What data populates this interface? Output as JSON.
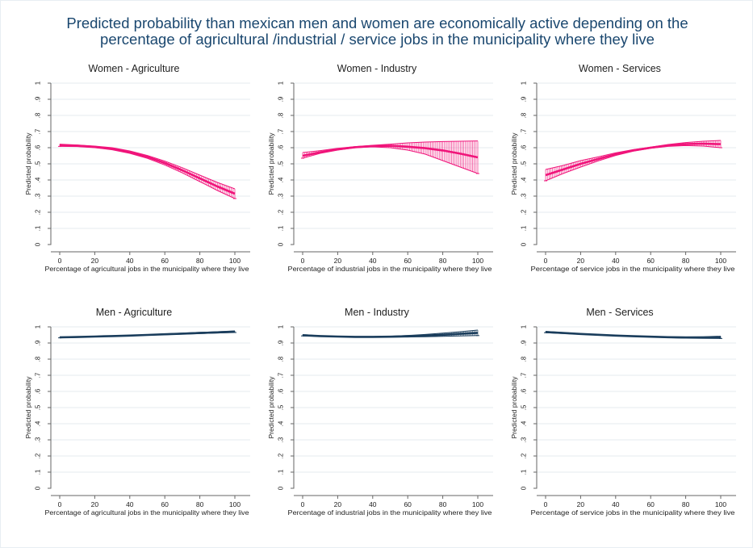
{
  "figure": {
    "title_line1": "Predicted probability than mexican men and women are economically active depending on the",
    "title_line2": "percentage of agricultural /industrial / service jobs in the municipality where they live"
  },
  "colors": {
    "women": "#f0147a",
    "men": "#1a3d5c",
    "title": "#1a476f",
    "text": "#222222",
    "grid": "#e6ebef",
    "axis": "#666666"
  },
  "chart_data": [
    {
      "type": "line",
      "title": "Women - Agriculture",
      "xlabel": "Percentage of agricultural jobs in the municipality where they live",
      "ylabel": "Predicted probability",
      "xlim": [
        0,
        100
      ],
      "ylim": [
        0,
        1
      ],
      "xticks": [
        "0",
        "20",
        "40",
        "60",
        "80",
        "100"
      ],
      "yticks": [
        "0",
        ".1",
        ".2",
        ".3",
        ".4",
        ".5",
        ".6",
        ".7",
        ".8",
        ".9",
        "1"
      ],
      "grid": true,
      "series": [
        {
          "group": "women",
          "x": [
            0,
            10,
            20,
            30,
            40,
            50,
            60,
            70,
            80,
            90,
            100
          ],
          "y": [
            0.615,
            0.612,
            0.605,
            0.593,
            0.572,
            0.543,
            0.505,
            0.46,
            0.41,
            0.36,
            0.315
          ],
          "lower": [
            0.608,
            0.607,
            0.6,
            0.587,
            0.565,
            0.534,
            0.493,
            0.444,
            0.39,
            0.335,
            0.285
          ],
          "upper": [
            0.622,
            0.617,
            0.61,
            0.6,
            0.58,
            0.552,
            0.517,
            0.476,
            0.43,
            0.385,
            0.345
          ]
        }
      ]
    },
    {
      "type": "line",
      "title": "Women - Industry",
      "xlabel": "Percentage of industrial jobs in the municipality where they live",
      "ylabel": "Predicted probability",
      "xlim": [
        0,
        100
      ],
      "ylim": [
        0,
        1
      ],
      "xticks": [
        "0",
        "20",
        "40",
        "60",
        "80",
        "100"
      ],
      "yticks": [
        "0",
        ".1",
        ".2",
        ".3",
        ".4",
        ".5",
        ".6",
        ".7",
        ".8",
        ".9",
        "1"
      ],
      "grid": true,
      "series": [
        {
          "group": "women",
          "x": [
            0,
            10,
            20,
            30,
            40,
            50,
            60,
            70,
            80,
            90,
            100
          ],
          "y": [
            0.55,
            0.572,
            0.59,
            0.603,
            0.61,
            0.612,
            0.606,
            0.597,
            0.583,
            0.563,
            0.54
          ],
          "lower": [
            0.535,
            0.565,
            0.585,
            0.6,
            0.605,
            0.6,
            0.585,
            0.56,
            0.52,
            0.48,
            0.44
          ],
          "upper": [
            0.57,
            0.582,
            0.596,
            0.607,
            0.615,
            0.622,
            0.63,
            0.635,
            0.638,
            0.64,
            0.642
          ]
        }
      ]
    },
    {
      "type": "line",
      "title": "Women - Services",
      "xlabel": "Percentage of service jobs in the municipality where they live",
      "ylabel": "Predicted probability",
      "xlim": [
        0,
        100
      ],
      "ylim": [
        0,
        1
      ],
      "xticks": [
        "0",
        "20",
        "40",
        "60",
        "80",
        "100"
      ],
      "yticks": [
        "0",
        ".1",
        ".2",
        ".3",
        ".4",
        ".5",
        ".6",
        ".7",
        ".8",
        ".9",
        "1"
      ],
      "grid": true,
      "series": [
        {
          "group": "women",
          "x": [
            0,
            10,
            20,
            30,
            40,
            50,
            60,
            70,
            80,
            90,
            100
          ],
          "y": [
            0.43,
            0.465,
            0.5,
            0.53,
            0.56,
            0.583,
            0.6,
            0.614,
            0.622,
            0.625,
            0.622
          ],
          "lower": [
            0.395,
            0.44,
            0.48,
            0.518,
            0.552,
            0.578,
            0.596,
            0.608,
            0.613,
            0.61,
            0.6
          ],
          "upper": [
            0.465,
            0.49,
            0.52,
            0.543,
            0.568,
            0.588,
            0.604,
            0.62,
            0.632,
            0.64,
            0.645
          ]
        }
      ]
    },
    {
      "type": "line",
      "title": "Men - Agriculture",
      "xlabel": "Percentage of agricultural jobs in the municipality where they live",
      "ylabel": "Predicted probability",
      "xlim": [
        0,
        100
      ],
      "ylim": [
        0,
        1
      ],
      "xticks": [
        "0",
        "20",
        "40",
        "60",
        "80",
        "100"
      ],
      "yticks": [
        "0",
        ".1",
        ".2",
        ".3",
        ".4",
        ".5",
        ".6",
        ".7",
        ".8",
        ".9",
        "1"
      ],
      "grid": true,
      "series": [
        {
          "group": "men",
          "x": [
            0,
            10,
            20,
            30,
            40,
            50,
            60,
            70,
            80,
            90,
            100
          ],
          "y": [
            0.935,
            0.937,
            0.94,
            0.943,
            0.946,
            0.95,
            0.954,
            0.958,
            0.962,
            0.966,
            0.97
          ],
          "lower": [
            0.932,
            0.935,
            0.938,
            0.941,
            0.944,
            0.948,
            0.951,
            0.955,
            0.958,
            0.962,
            0.965
          ],
          "upper": [
            0.938,
            0.939,
            0.942,
            0.945,
            0.948,
            0.952,
            0.957,
            0.961,
            0.966,
            0.97,
            0.975
          ]
        }
      ]
    },
    {
      "type": "line",
      "title": "Men - Industry",
      "xlabel": "Percentage of industrial jobs in the municipality where they live",
      "ylabel": "Predicted probability",
      "xlim": [
        0,
        100
      ],
      "ylim": [
        0,
        1
      ],
      "xticks": [
        "0",
        "20",
        "40",
        "60",
        "80",
        "100"
      ],
      "yticks": [
        "0",
        ".1",
        ".2",
        ".3",
        ".4",
        ".5",
        ".6",
        ".7",
        ".8",
        ".9",
        "1"
      ],
      "grid": true,
      "series": [
        {
          "group": "men",
          "x": [
            0,
            10,
            20,
            30,
            40,
            50,
            60,
            70,
            80,
            90,
            100
          ],
          "y": [
            0.948,
            0.943,
            0.94,
            0.938,
            0.938,
            0.939,
            0.942,
            0.946,
            0.951,
            0.957,
            0.963
          ],
          "lower": [
            0.944,
            0.941,
            0.938,
            0.936,
            0.936,
            0.936,
            0.937,
            0.939,
            0.941,
            0.944,
            0.946
          ],
          "upper": [
            0.952,
            0.945,
            0.942,
            0.94,
            0.94,
            0.942,
            0.947,
            0.953,
            0.961,
            0.97,
            0.98
          ]
        }
      ]
    },
    {
      "type": "line",
      "title": "Men - Services",
      "xlabel": "Percentage of service jobs in the municipality where they live",
      "ylabel": "Predicted probability",
      "xlim": [
        0,
        100
      ],
      "ylim": [
        0,
        1
      ],
      "xticks": [
        "0",
        "20",
        "40",
        "60",
        "80",
        "100"
      ],
      "yticks": [
        "0",
        ".1",
        ".2",
        ".3",
        ".4",
        ".5",
        ".6",
        ".7",
        ".8",
        ".9",
        "1"
      ],
      "grid": true,
      "series": [
        {
          "group": "men",
          "x": [
            0,
            10,
            20,
            30,
            40,
            50,
            60,
            70,
            80,
            90,
            100
          ],
          "y": [
            0.968,
            0.962,
            0.956,
            0.951,
            0.946,
            0.942,
            0.939,
            0.936,
            0.934,
            0.934,
            0.935
          ],
          "lower": [
            0.964,
            0.959,
            0.954,
            0.949,
            0.944,
            0.94,
            0.937,
            0.933,
            0.93,
            0.929,
            0.928
          ],
          "upper": [
            0.972,
            0.965,
            0.958,
            0.953,
            0.948,
            0.944,
            0.941,
            0.939,
            0.938,
            0.939,
            0.942
          ]
        }
      ]
    }
  ]
}
